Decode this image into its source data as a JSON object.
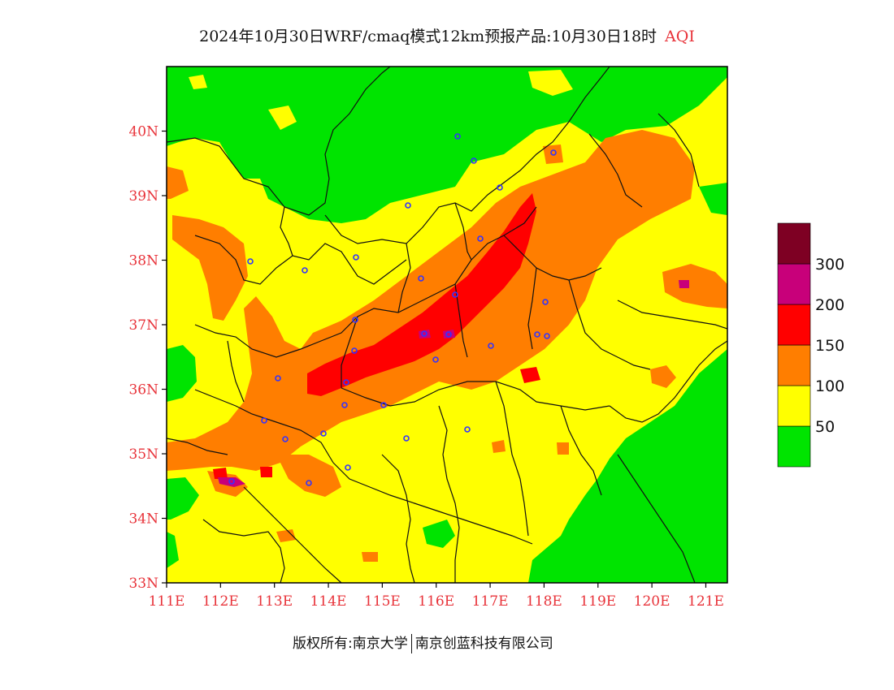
{
  "title": {
    "main": "2024年10月30日WRF/cmaq模式12km预报产品:10月30日18时",
    "variable": "AQI"
  },
  "map": {
    "lon_range": [
      111,
      121.4
    ],
    "lat_range": [
      33,
      41
    ],
    "lat_ticks": [
      "33N",
      "34N",
      "35N",
      "36N",
      "37N",
      "38N",
      "39N",
      "40N"
    ],
    "lon_ticks": [
      "111E",
      "112E",
      "113E",
      "114E",
      "115E",
      "116E",
      "117E",
      "118E",
      "119E",
      "120E",
      "121E"
    ],
    "category_colors": {
      "good": "#00e400",
      "moderate": "#ffff00",
      "unhealthy_sensitive": "#ff7e00",
      "unhealthy": "#ff0000",
      "very_unhealthy": "#c8007a",
      "hazardous": "#7e0023"
    }
  },
  "legend": {
    "labels": [
      "50",
      "100",
      "150",
      "200",
      "300"
    ],
    "colors": [
      "#00e400",
      "#ffff00",
      "#ff7e00",
      "#ff0000",
      "#c8007a",
      "#7e0023"
    ]
  },
  "footer": {
    "copyright": "版权所有:南京大学",
    "company": "南京创蓝科技有限公司"
  }
}
